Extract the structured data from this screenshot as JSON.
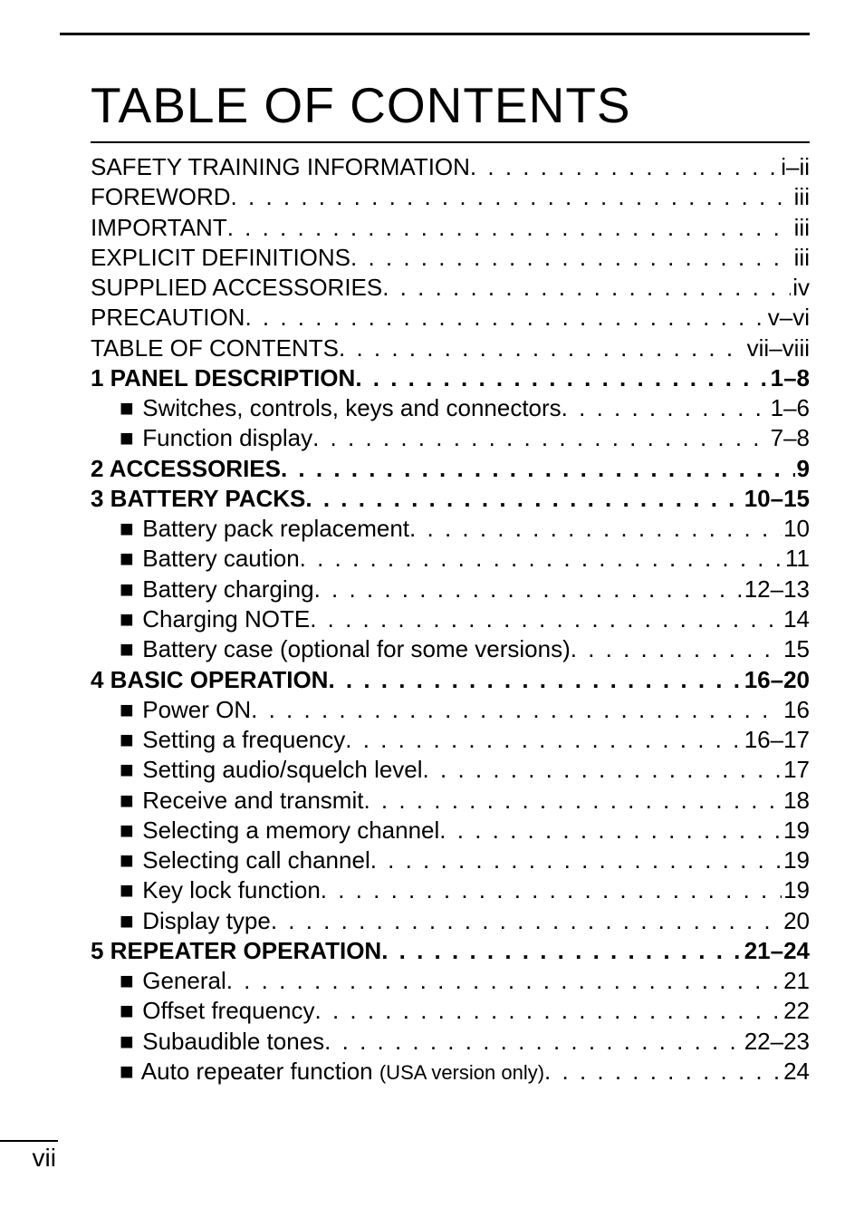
{
  "page": {
    "title": "TABLE OF CONTENTS",
    "page_number": "vii",
    "title_fontsize": 55,
    "body_fontsize": 26,
    "text_color": "#000000",
    "background_color": "#ffffff",
    "rule_color": "#000000"
  },
  "toc": [
    {
      "label": "SAFETY TRAINING INFORMATION",
      "page": "i–ii",
      "bold": false,
      "indent": 0
    },
    {
      "label": "FOREWORD",
      "page": "iii",
      "bold": false,
      "indent": 0
    },
    {
      "label": "IMPORTANT",
      "page": "iii",
      "bold": false,
      "indent": 0
    },
    {
      "label": "EXPLICIT DEFINITIONS",
      "page": "iii",
      "bold": false,
      "indent": 0
    },
    {
      "label": "SUPPLIED ACCESSORIES",
      "page": "iv",
      "bold": false,
      "indent": 0
    },
    {
      "label": "PRECAUTION",
      "page": "v–vi",
      "bold": false,
      "indent": 0
    },
    {
      "label": "TABLE OF CONTENTS",
      "page": "vii–viii",
      "bold": false,
      "indent": 0
    },
    {
      "label": "1 PANEL DESCRIPTION",
      "page": "1–8",
      "bold": true,
      "indent": 0
    },
    {
      "label": "Switches, controls, keys and connectors",
      "page": "1–6",
      "bold": false,
      "indent": 1
    },
    {
      "label": "Function display",
      "page": "7–8",
      "bold": false,
      "indent": 1
    },
    {
      "label": "2 ACCESSORIES",
      "page": "9",
      "bold": true,
      "indent": 0
    },
    {
      "label": "3 BATTERY PACKS",
      "page": "10–15",
      "bold": true,
      "indent": 0
    },
    {
      "label": "Battery pack replacement",
      "page": "10",
      "bold": false,
      "indent": 1
    },
    {
      "label": "Battery caution",
      "page": "11",
      "bold": false,
      "indent": 1
    },
    {
      "label": "Battery charging",
      "page": "12–13",
      "bold": false,
      "indent": 1
    },
    {
      "label": "Charging NOTE",
      "page": "14",
      "bold": false,
      "indent": 1
    },
    {
      "label": "Battery case (optional for some versions)",
      "page": "15",
      "bold": false,
      "indent": 1
    },
    {
      "label": "4 BASIC OPERATION",
      "page": "16–20",
      "bold": true,
      "indent": 0
    },
    {
      "label": "Power ON",
      "page": "16",
      "bold": false,
      "indent": 1
    },
    {
      "label": "Setting a frequency",
      "page": "16–17",
      "bold": false,
      "indent": 1
    },
    {
      "label": "Setting audio/squelch level",
      "page": "17",
      "bold": false,
      "indent": 1
    },
    {
      "label": "Receive and transmit",
      "page": "18",
      "bold": false,
      "indent": 1
    },
    {
      "label": "Selecting a memory channel",
      "page": "19",
      "bold": false,
      "indent": 1
    },
    {
      "label": "Selecting call channel",
      "page": "19",
      "bold": false,
      "indent": 1
    },
    {
      "label": "Key lock function",
      "page": "19",
      "bold": false,
      "indent": 1
    },
    {
      "label": "Display type",
      "page": "20",
      "bold": false,
      "indent": 1
    },
    {
      "label": "5 REPEATER OPERATION",
      "page": "21–24",
      "bold": true,
      "indent": 0
    },
    {
      "label": "General",
      "page": "21",
      "bold": false,
      "indent": 1
    },
    {
      "label": "Offset frequency",
      "page": "22",
      "bold": false,
      "indent": 1
    },
    {
      "label": "Subaudible tones",
      "page": "22–23",
      "bold": false,
      "indent": 1
    },
    {
      "label": "Auto repeater function",
      "note": "(USA version only)",
      "page": "24",
      "bold": false,
      "indent": 1
    }
  ]
}
